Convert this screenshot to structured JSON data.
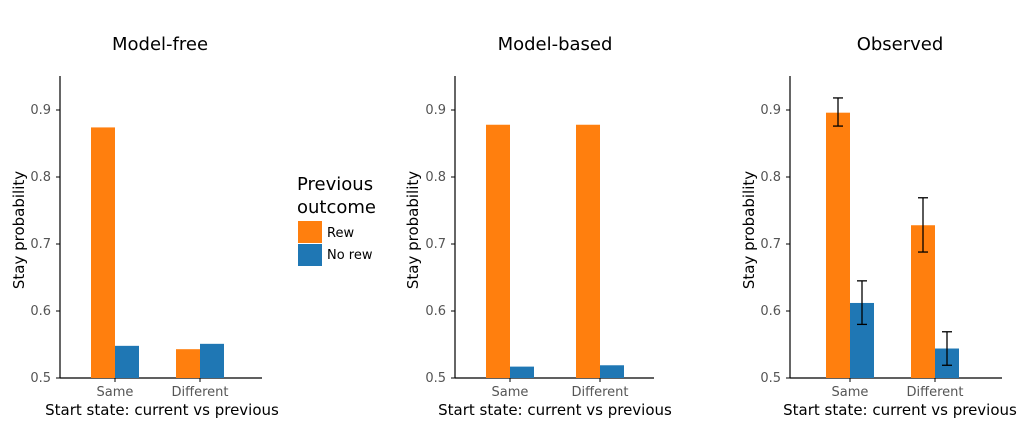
{
  "legend": {
    "title_line1": "Previous",
    "title_line2": "outcome",
    "entries": [
      {
        "label": "Rew",
        "color": "#ff7f0e"
      },
      {
        "label": "No rew",
        "color": "#1f77b4"
      }
    ]
  },
  "chart_data": [
    {
      "type": "bar",
      "title": "Model-free",
      "xlabel": "Start state: current vs previous",
      "ylabel": "Stay probability",
      "categories": [
        "Same",
        "Different"
      ],
      "ylim": [
        0.5,
        0.95
      ],
      "yticks": [
        "0.5",
        "0.6",
        "0.7",
        "0.8",
        "0.9"
      ],
      "series": [
        {
          "name": "Rew",
          "color": "#ff7f0e",
          "values": [
            0.874,
            0.543
          ]
        },
        {
          "name": "No rew",
          "color": "#1f77b4",
          "values": [
            0.548,
            0.551
          ]
        }
      ]
    },
    {
      "type": "bar",
      "title": "Model-based",
      "xlabel": "Start state: current vs previous",
      "ylabel": "Stay probability",
      "categories": [
        "Same",
        "Different"
      ],
      "ylim": [
        0.5,
        0.95
      ],
      "yticks": [
        "0.5",
        "0.6",
        "0.7",
        "0.8",
        "0.9"
      ],
      "series": [
        {
          "name": "Rew",
          "color": "#ff7f0e",
          "values": [
            0.878,
            0.878
          ]
        },
        {
          "name": "No rew",
          "color": "#1f77b4",
          "values": [
            0.517,
            0.519
          ]
        }
      ]
    },
    {
      "type": "bar",
      "title": "Observed",
      "xlabel": "Start state: current vs previous",
      "ylabel": "Stay probability",
      "categories": [
        "Same",
        "Different"
      ],
      "ylim": [
        0.5,
        0.95
      ],
      "yticks": [
        "0.5",
        "0.6",
        "0.7",
        "0.8",
        "0.9"
      ],
      "series": [
        {
          "name": "Rew",
          "color": "#ff7f0e",
          "values": [
            0.896,
            0.728
          ],
          "error_low": [
            0.876,
            0.688
          ],
          "error_high": [
            0.918,
            0.769
          ]
        },
        {
          "name": "No rew",
          "color": "#1f77b4",
          "values": [
            0.612,
            0.544
          ],
          "error_low": [
            0.58,
            0.519
          ],
          "error_high": [
            0.645,
            0.569
          ]
        }
      ]
    }
  ]
}
